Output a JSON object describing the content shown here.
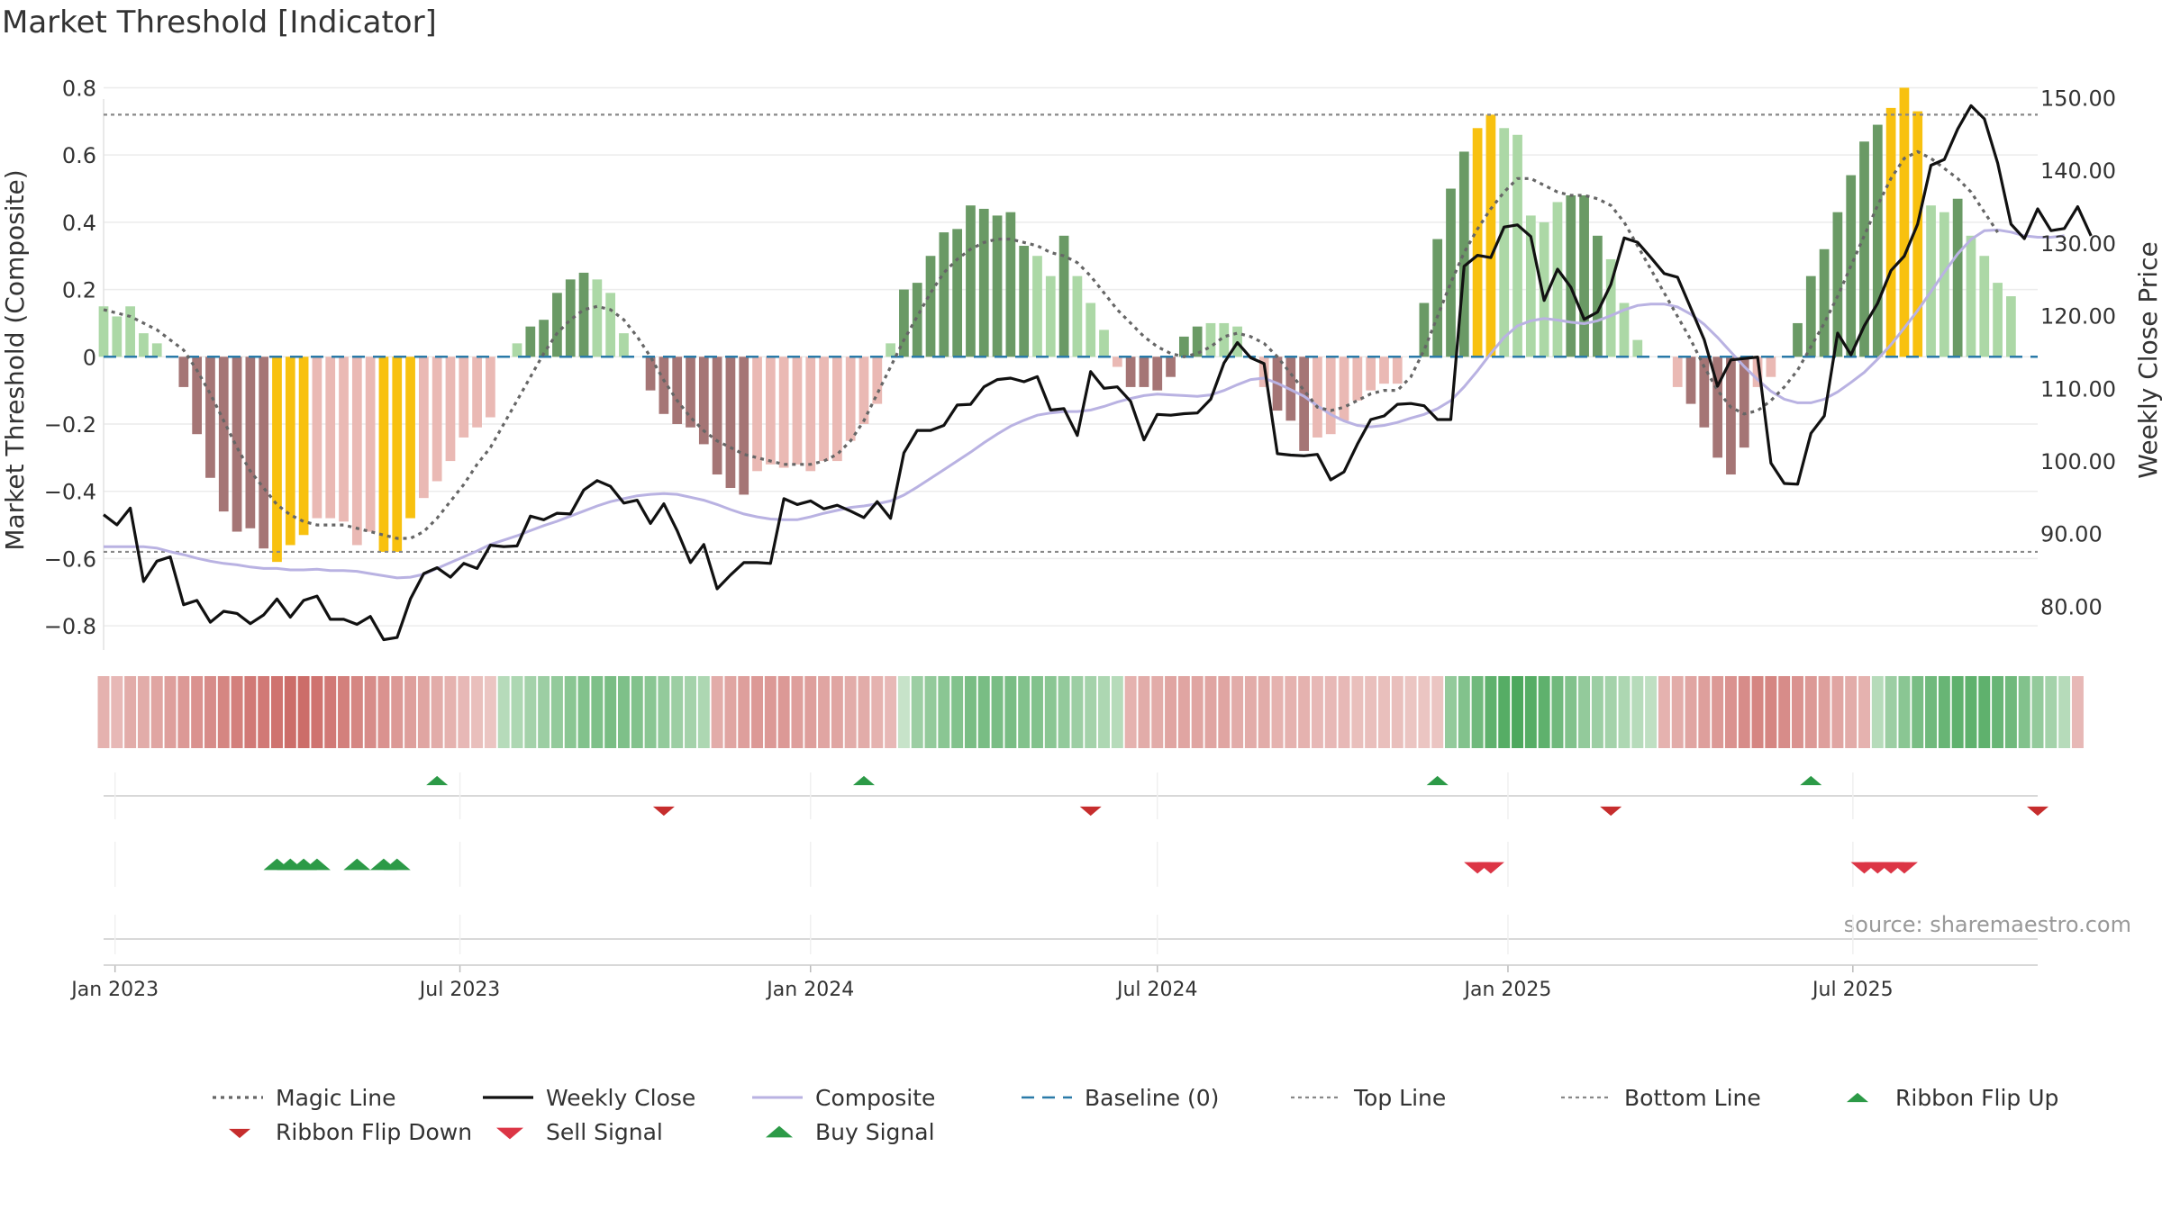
{
  "chart_data": {
    "type": "bar",
    "title": "Market Threshold [Indicator]",
    "ylabel": "Market Threshold (Composite)",
    "y2label": "Weekly Close Price",
    "source": "source: sharemaestro.com",
    "ylim": [
      -0.88,
      0.82
    ],
    "y_ticks": [
      0.8,
      0.6,
      0.4,
      0.2,
      0,
      -0.2,
      -0.4,
      -0.6,
      -0.8
    ],
    "y_tick_labels": [
      "0.8",
      "0.6",
      "0.4",
      "0.2",
      "0",
      "−0.2",
      "−0.4",
      "−0.6",
      "−0.8"
    ],
    "y2lim": [
      73.6,
      152.3
    ],
    "y2_ticks": [
      150,
      140,
      130,
      120,
      110,
      100,
      90,
      80
    ],
    "y2_tick_labels": [
      "150.00",
      "140.00",
      "130.00",
      "120.00",
      "110.00",
      "100.00",
      "90.00",
      "80.00"
    ],
    "x_range": [
      "2022-12-26",
      "2025-10-06"
    ],
    "x_ticks": [
      {
        "date": "2023-01-01",
        "label": "Jan 2023"
      },
      {
        "date": "2023-07-01",
        "label": "Jul 2023"
      },
      {
        "date": "2024-01-01",
        "label": "Jan 2024"
      },
      {
        "date": "2024-07-01",
        "label": "Jul 2024"
      },
      {
        "date": "2025-01-01",
        "label": "Jan 2025"
      },
      {
        "date": "2025-07-01",
        "label": "Jul 2025"
      }
    ],
    "top_line": 0.72,
    "bottom_line": -0.58,
    "baseline": 0,
    "start_date": "2022-12-26",
    "week_interval_days": 7,
    "colors": {
      "green_dark": "#6a9a65",
      "green_light": "#acd8a6",
      "red_dark": "#a57575",
      "red_light": "#eab9b4",
      "gold": "#f8c10f",
      "magic_line": "#666666",
      "weekly_close": "#111111",
      "composite": "#b9b2e2",
      "baseline": "#2a7aa8",
      "threshold_lines": "#888888",
      "ribbon_flip_up": "#2c9a47",
      "ribbon_flip_down": "#c62d2d",
      "sell_signal": "#dc3545",
      "buy_signal": "#2c9a47"
    },
    "bars": [
      0.15,
      0.12,
      0.15,
      0.07,
      0.04,
      0,
      -0.09,
      -0.23,
      -0.36,
      -0.46,
      -0.52,
      -0.51,
      -0.57,
      -0.61,
      -0.56,
      -0.53,
      -0.48,
      -0.48,
      -0.49,
      -0.56,
      -0.52,
      -0.58,
      -0.58,
      -0.48,
      -0.42,
      -0.37,
      -0.31,
      -0.24,
      -0.21,
      -0.18,
      0,
      0.04,
      0.09,
      0.11,
      0.19,
      0.23,
      0.25,
      0.23,
      0.19,
      0.07,
      0,
      -0.1,
      -0.17,
      -0.2,
      -0.21,
      -0.26,
      -0.35,
      -0.39,
      -0.41,
      -0.34,
      -0.32,
      -0.33,
      -0.32,
      -0.34,
      -0.31,
      -0.31,
      -0.25,
      -0.2,
      -0.14,
      0.04,
      0.2,
      0.22,
      0.3,
      0.37,
      0.38,
      0.45,
      0.44,
      0.42,
      0.43,
      0.33,
      0.3,
      0.24,
      0.36,
      0.24,
      0.16,
      0.08,
      -0.03,
      -0.09,
      -0.09,
      -0.1,
      -0.06,
      0.06,
      0.09,
      0.1,
      0.1,
      0.09,
      0,
      -0.09,
      -0.16,
      -0.19,
      -0.28,
      -0.24,
      -0.23,
      -0.19,
      -0.13,
      -0.1,
      -0.08,
      -0.08,
      0,
      0.16,
      0.35,
      0.5,
      0.61,
      0.68,
      0.72,
      0.68,
      0.66,
      0.42,
      0.4,
      0.46,
      0.48,
      0.48,
      0.36,
      0.29,
      0.16,
      0.05,
      0,
      0,
      -0.09,
      -0.14,
      -0.21,
      -0.3,
      -0.35,
      -0.27,
      -0.09,
      -0.06,
      0,
      0.1,
      0.24,
      0.32,
      0.43,
      0.54,
      0.64,
      0.69,
      0.74,
      0.8,
      0.73,
      0.45,
      0.43,
      0.47,
      0.36,
      0.3,
      0.22,
      0.18
    ],
    "bars_gold_index": [
      13,
      14,
      15,
      21,
      22,
      23,
      103,
      104,
      134,
      135,
      136
    ],
    "bars_dark_index": [
      6,
      7,
      8,
      9,
      10,
      11,
      12,
      32,
      33,
      34,
      35,
      36,
      41,
      42,
      43,
      44,
      45,
      46,
      47,
      48,
      60,
      61,
      62,
      63,
      64,
      65,
      66,
      67,
      68,
      69,
      72,
      77,
      78,
      79,
      80,
      81,
      82,
      88,
      89,
      90,
      99,
      100,
      101,
      102,
      110,
      111,
      112,
      119,
      120,
      121,
      122,
      123,
      127,
      128,
      129,
      130,
      131,
      132,
      133,
      139
    ],
    "weekly_close": [
      92.6,
      91.2,
      93.5,
      83.4,
      86.2,
      86.8,
      80.2,
      80.8,
      77.8,
      79.3,
      79.0,
      77.6,
      78.8,
      81.0,
      78.5,
      80.8,
      81.4,
      78.2,
      78.2,
      77.5,
      78.6,
      75.4,
      75.7,
      81.0,
      84.5,
      85.3,
      84.0,
      85.9,
      85.2,
      88.4,
      88.2,
      88.3,
      92.4,
      91.9,
      92.8,
      92.7,
      96.0,
      97.3,
      96.5,
      94.2,
      94.6,
      91.4,
      94.1,
      90.4,
      86.0,
      88.5,
      82.4,
      84.3,
      86.0,
      86.0,
      85.9,
      94.8,
      94.0,
      94.5,
      93.4,
      93.9,
      93.1,
      92.2,
      94.4,
      92.1,
      101.1,
      104.2,
      104.2,
      104.9,
      107.7,
      107.8,
      110.2,
      111.2,
      111.4,
      110.9,
      111.6,
      107.0,
      107.2,
      103.5,
      112.3,
      110.0,
      110.2,
      108.2,
      102.9,
      106.4,
      106.3,
      106.5,
      106.6,
      108.5,
      113.5,
      116.3,
      114.2,
      113.4,
      101.0,
      100.8,
      100.7,
      100.9,
      97.4,
      98.5,
      102.3,
      105.7,
      106.2,
      107.8,
      107.9,
      107.6,
      105.7,
      105.7,
      126.8,
      128.3,
      128.0,
      132.2,
      132.5,
      130.9,
      122.1,
      126.4,
      123.9,
      119.5,
      120.5,
      124.3,
      130.7,
      130.1,
      128.0,
      125.8,
      125.3,
      121.0,
      116.7,
      110.3,
      113.9,
      114.1,
      114.3,
      99.7,
      96.9,
      96.8,
      103.8,
      106.2,
      117.6,
      114.6,
      118.6,
      121.7,
      126.2,
      128.2,
      132.6,
      140.7,
      141.5,
      145.7,
      148.9,
      147.1,
      141.0,
      132.6,
      130.6,
      134.7,
      131.7,
      132.0,
      135.0,
      131.0
    ],
    "composite_close": [
      88.2,
      88.2,
      88.2,
      88.2,
      88.0,
      87.5,
      87.1,
      86.6,
      86.2,
      85.9,
      85.7,
      85.4,
      85.2,
      85.2,
      85.0,
      85.0,
      85.1,
      84.9,
      84.9,
      84.8,
      84.5,
      84.2,
      83.9,
      84.0,
      84.4,
      85.2,
      86.0,
      86.8,
      87.6,
      88.5,
      89.1,
      89.7,
      90.4,
      91.1,
      91.7,
      92.4,
      93.1,
      93.8,
      94.4,
      94.8,
      95.2,
      95.4,
      95.5,
      95.4,
      95.0,
      94.6,
      94.0,
      93.3,
      92.7,
      92.3,
      92.0,
      91.9,
      91.9,
      92.3,
      92.8,
      93.2,
      93.6,
      93.8,
      94.1,
      94.5,
      95.3,
      96.4,
      97.6,
      98.8,
      100.0,
      101.2,
      102.5,
      103.7,
      104.8,
      105.6,
      106.3,
      106.6,
      106.8,
      106.8,
      107.0,
      107.5,
      108.1,
      108.6,
      109.0,
      109.2,
      109.1,
      109.0,
      108.9,
      109.1,
      109.7,
      110.5,
      111.2,
      111.4,
      110.7,
      109.8,
      108.9,
      107.6,
      106.4,
      105.5,
      104.9,
      104.7,
      104.9,
      105.3,
      105.9,
      106.4,
      107.2,
      108.3,
      110.2,
      112.4,
      114.8,
      117.0,
      118.6,
      119.3,
      119.6,
      119.4,
      119.1,
      118.9,
      119.3,
      120.0,
      120.8,
      121.4,
      121.6,
      121.6,
      121.2,
      120.2,
      118.8,
      117.0,
      115.0,
      113.0,
      111.2,
      109.6,
      108.5,
      108.0,
      108.0,
      108.5,
      109.5,
      110.8,
      112.2,
      114.0,
      116.0,
      118.3,
      120.7,
      123.3,
      126.0,
      128.5,
      130.5,
      131.7,
      131.8,
      131.5,
      131.0,
      130.8,
      130.8,
      131.0
    ],
    "magic_line": [
      0.14,
      0.13,
      0.12,
      0.1,
      0.08,
      0.05,
      0.02,
      -0.04,
      -0.11,
      -0.19,
      -0.27,
      -0.34,
      -0.39,
      -0.44,
      -0.47,
      -0.49,
      -0.5,
      -0.5,
      -0.5,
      -0.51,
      -0.52,
      -0.53,
      -0.54,
      -0.54,
      -0.52,
      -0.48,
      -0.43,
      -0.38,
      -0.32,
      -0.27,
      -0.2,
      -0.13,
      -0.06,
      0.01,
      0.07,
      0.11,
      0.14,
      0.15,
      0.14,
      0.11,
      0.06,
      0.0,
      -0.07,
      -0.13,
      -0.18,
      -0.22,
      -0.25,
      -0.27,
      -0.29,
      -0.3,
      -0.31,
      -0.32,
      -0.32,
      -0.32,
      -0.31,
      -0.29,
      -0.25,
      -0.19,
      -0.11,
      -0.03,
      0.05,
      0.12,
      0.19,
      0.25,
      0.29,
      0.32,
      0.34,
      0.35,
      0.35,
      0.34,
      0.33,
      0.31,
      0.3,
      0.28,
      0.24,
      0.19,
      0.14,
      0.1,
      0.06,
      0.03,
      0.01,
      0.0,
      0.01,
      0.03,
      0.06,
      0.07,
      0.06,
      0.04,
      0.0,
      -0.05,
      -0.1,
      -0.15,
      -0.16,
      -0.15,
      -0.13,
      -0.11,
      -0.1,
      -0.1,
      -0.06,
      0.02,
      0.12,
      0.22,
      0.31,
      0.38,
      0.44,
      0.49,
      0.53,
      0.53,
      0.51,
      0.49,
      0.48,
      0.48,
      0.47,
      0.45,
      0.4,
      0.33,
      0.26,
      0.19,
      0.12,
      0.05,
      -0.03,
      -0.1,
      -0.15,
      -0.17,
      -0.16,
      -0.13,
      -0.09,
      -0.04,
      0.03,
      0.1,
      0.18,
      0.27,
      0.36,
      0.45,
      0.53,
      0.59,
      0.61,
      0.59,
      0.56,
      0.53,
      0.49,
      0.43,
      0.37
    ],
    "ribbon_strength": [
      -0.35,
      -0.3,
      -0.4,
      -0.4,
      -0.45,
      -0.5,
      -0.55,
      -0.6,
      -0.65,
      -0.7,
      -0.75,
      -0.8,
      -0.8,
      -0.85,
      -0.9,
      -0.9,
      -0.85,
      -0.8,
      -0.75,
      -0.7,
      -0.65,
      -0.6,
      -0.55,
      -0.5,
      -0.45,
      -0.4,
      -0.35,
      -0.3,
      -0.25,
      -0.2,
      0.3,
      0.35,
      0.4,
      0.45,
      0.5,
      0.55,
      0.6,
      0.62,
      0.65,
      0.62,
      0.6,
      0.55,
      0.5,
      0.45,
      0.4,
      0.35,
      -0.4,
      -0.45,
      -0.5,
      -0.55,
      -0.55,
      -0.55,
      -0.5,
      -0.5,
      -0.45,
      -0.45,
      -0.4,
      -0.4,
      -0.35,
      -0.3,
      0.2,
      0.45,
      0.5,
      0.55,
      0.6,
      0.65,
      0.65,
      0.65,
      0.65,
      0.6,
      0.6,
      0.55,
      0.5,
      0.45,
      0.4,
      0.35,
      0.3,
      -0.35,
      -0.4,
      -0.4,
      -0.45,
      -0.45,
      -0.45,
      -0.45,
      -0.45,
      -0.4,
      -0.4,
      -0.4,
      -0.35,
      -0.35,
      -0.35,
      -0.3,
      -0.3,
      -0.3,
      -0.25,
      -0.25,
      -0.25,
      -0.25,
      -0.2,
      -0.2,
      -0.2,
      0.5,
      0.6,
      0.7,
      0.8,
      0.85,
      0.9,
      0.85,
      0.8,
      0.7,
      0.6,
      0.5,
      0.45,
      0.4,
      0.35,
      0.3,
      0.25,
      -0.35,
      -0.4,
      -0.45,
      -0.5,
      -0.55,
      -0.6,
      -0.65,
      -0.7,
      -0.7,
      -0.65,
      -0.6,
      -0.55,
      -0.5,
      -0.45,
      -0.4,
      -0.35,
      0.3,
      0.45,
      0.55,
      0.65,
      0.7,
      0.75,
      0.8,
      0.8,
      0.8,
      0.75,
      0.7,
      0.6,
      0.5,
      0.4,
      0.3,
      -0.3
    ],
    "ribbon_flip_up": [
      "2023-06-19",
      "2024-01-29",
      "2024-11-25",
      "2025-06-09"
    ],
    "ribbon_flip_down": [
      "2023-10-16",
      "2024-05-27",
      "2025-02-24",
      "2025-10-06"
    ],
    "sell_signals": [
      "2024-12-16",
      "2024-12-23",
      "2025-07-07",
      "2025-07-14",
      "2025-07-21",
      "2025-07-28"
    ],
    "buy_signals": [
      "2023-03-27",
      "2023-04-03",
      "2023-04-10",
      "2023-04-17",
      "2023-05-08",
      "2023-05-22",
      "2023-05-29"
    ],
    "legend": [
      {
        "label": "Magic Line",
        "style": "dotted-line"
      },
      {
        "label": "Weekly Close",
        "style": "solid-line"
      },
      {
        "label": "Composite",
        "style": "composite-line"
      },
      {
        "label": "Baseline (0)",
        "style": "dashed-line"
      },
      {
        "label": "Top Line",
        "style": "thin-dotted-line"
      },
      {
        "label": "Bottom Line",
        "style": "thin-dotted-line"
      },
      {
        "label": "Ribbon Flip Up",
        "style": "triangle-up"
      },
      {
        "label": "Ribbon Flip Down",
        "style": "triangle-down"
      },
      {
        "label": "Sell Signal",
        "style": "triangle-down-large"
      },
      {
        "label": "Buy Signal",
        "style": "triangle-up-large"
      }
    ],
    "legend_placement": "bottom"
  }
}
